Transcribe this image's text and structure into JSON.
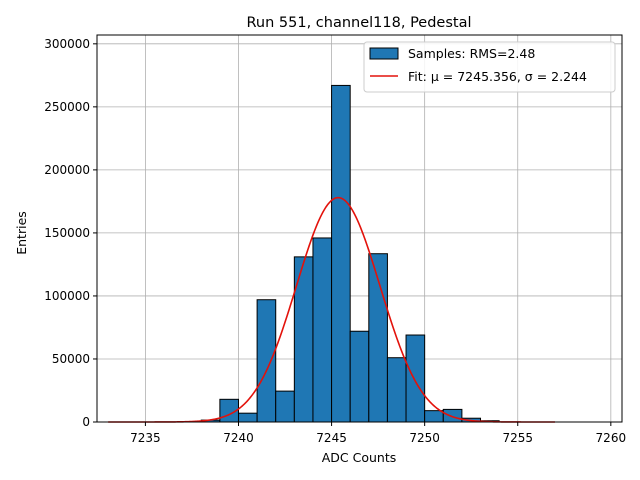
{
  "chart_data": {
    "type": "bar",
    "title": "Run 551, channel118, Pedestal",
    "xlabel": "ADC Counts",
    "ylabel": "Entries",
    "xlim": [
      7232.4,
      7260.6
    ],
    "ylim": [
      0,
      307000
    ],
    "xticks": [
      7235,
      7240,
      7245,
      7250,
      7255,
      7260
    ],
    "yticks": [
      0,
      50000,
      100000,
      150000,
      200000,
      250000,
      300000
    ],
    "grid": true,
    "legend_position": "top-right",
    "bin_width": 1,
    "bins": [
      {
        "x0": 7238,
        "value": 1500
      },
      {
        "x0": 7239,
        "value": 18000
      },
      {
        "x0": 7240,
        "value": 7000
      },
      {
        "x0": 7241,
        "value": 97000
      },
      {
        "x0": 7242,
        "value": 24500
      },
      {
        "x0": 7243,
        "value": 131000
      },
      {
        "x0": 7244,
        "value": 146000
      },
      {
        "x0": 7245,
        "value": 267000
      },
      {
        "x0": 7246,
        "value": 72000
      },
      {
        "x0": 7247,
        "value": 133500
      },
      {
        "x0": 7248,
        "value": 51000
      },
      {
        "x0": 7249,
        "value": 69000
      },
      {
        "x0": 7250,
        "value": 9000
      },
      {
        "x0": 7251,
        "value": 10000
      },
      {
        "x0": 7252,
        "value": 3000
      },
      {
        "x0": 7253,
        "value": 1000
      }
    ],
    "fit": {
      "mu": 7245.356,
      "sigma": 2.244,
      "amplitude": 178000,
      "x_range": [
        7233,
        7257
      ]
    },
    "series": [
      {
        "name": "Samples: RMS=2.48",
        "kind": "histogram",
        "color": "#1f77b4"
      },
      {
        "name": "Fit: μ = 7245.356, σ = 2.244",
        "kind": "line",
        "color": "#e3120b"
      }
    ]
  }
}
